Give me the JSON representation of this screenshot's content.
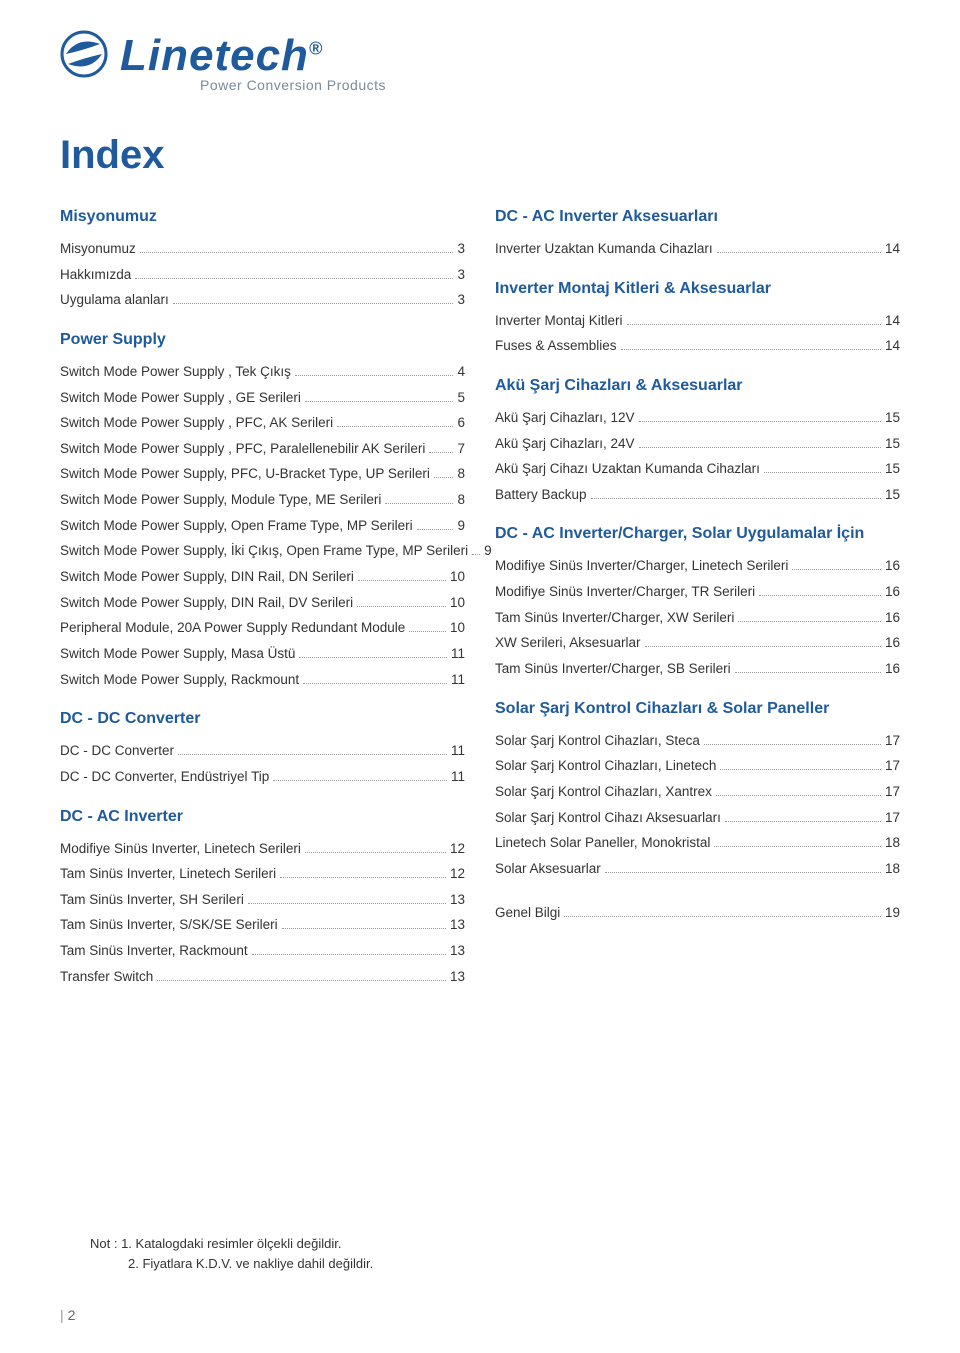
{
  "logo": {
    "name": "Linetech",
    "tm": "®",
    "tagline": "Power Conversion Products"
  },
  "index_title": "Index",
  "left_sections": [
    {
      "title": "Misyonumuz",
      "items": [
        {
          "label": "Misyonumuz",
          "page": "3"
        },
        {
          "label": "Hakkımızda",
          "page": "3"
        },
        {
          "label": "Uygulama alanları",
          "page": "3"
        }
      ]
    },
    {
      "title": "Power Supply",
      "items": [
        {
          "label": "Switch Mode Power Supply , Tek Çıkış",
          "page": "4"
        },
        {
          "label": "Switch Mode Power Supply , GE Serileri",
          "page": "5"
        },
        {
          "label": "Switch Mode Power Supply , PFC, AK Serileri",
          "page": "6"
        },
        {
          "label": "Switch Mode Power Supply , PFC, Paralellenebilir AK Serileri",
          "page": "7"
        },
        {
          "label": "Switch Mode Power Supply, PFC, U-Bracket Type, UP Serileri",
          "page": "8"
        },
        {
          "label": "Switch Mode Power Supply, Module Type, ME Serileri",
          "page": "8"
        },
        {
          "label": "Switch Mode Power Supply, Open Frame Type, MP Serileri",
          "page": "9"
        },
        {
          "label": "Switch Mode Power Supply, İki Çıkış, Open Frame Type, MP Serileri",
          "page": "9"
        },
        {
          "label": "Switch Mode Power Supply, DIN Rail, DN Serileri",
          "page": "10"
        },
        {
          "label": "Switch Mode Power Supply, DIN Rail, DV Serileri",
          "page": "10"
        },
        {
          "label": "Peripheral Module, 20A Power Supply Redundant Module",
          "page": "10"
        },
        {
          "label": "Switch Mode Power Supply, Masa Üstü",
          "page": "11"
        },
        {
          "label": "Switch Mode Power Supply, Rackmount",
          "page": "11"
        }
      ]
    },
    {
      "title": "DC - DC Converter",
      "items": [
        {
          "label": "DC - DC Converter",
          "page": "11"
        },
        {
          "label": "DC - DC Converter, Endüstriyel Tip",
          "page": "11"
        }
      ]
    },
    {
      "title": "DC - AC Inverter",
      "items": [
        {
          "label": "Modifiye Sinüs Inverter, Linetech Serileri",
          "page": "12"
        },
        {
          "label": "Tam Sinüs Inverter, Linetech Serileri",
          "page": "12"
        },
        {
          "label": "Tam Sinüs Inverter, SH Serileri",
          "page": "13"
        },
        {
          "label": "Tam Sinüs Inverter, S/SK/SE Serileri",
          "page": "13"
        },
        {
          "label": "Tam Sinüs Inverter, Rackmount",
          "page": "13"
        },
        {
          "label": "Transfer Switch",
          "page": "13"
        }
      ]
    }
  ],
  "right_sections": [
    {
      "title": "DC - AC Inverter Aksesuarları",
      "items": [
        {
          "label": "Inverter Uzaktan Kumanda Cihazları",
          "page": "14"
        }
      ]
    },
    {
      "title": "Inverter Montaj Kitleri & Aksesuarlar",
      "items": [
        {
          "label": "Inverter Montaj Kitleri",
          "page": "14"
        },
        {
          "label": "Fuses & Assemblies",
          "page": "14"
        }
      ]
    },
    {
      "title": "Akü Şarj Cihazları & Aksesuarlar",
      "items": [
        {
          "label": "Akü Şarj Cihazları, 12V",
          "page": "15"
        },
        {
          "label": "Akü Şarj Cihazları, 24V",
          "page": "15"
        },
        {
          "label": "Akü Şarj Cihazı Uzaktan Kumanda Cihazları",
          "page": "15"
        },
        {
          "label": "Battery Backup",
          "page": "15"
        }
      ]
    },
    {
      "title": "DC - AC Inverter/Charger, Solar Uygulamalar İçin",
      "items": [
        {
          "label": "Modifiye Sinüs Inverter/Charger, Linetech Serileri",
          "page": "16"
        },
        {
          "label": "Modifiye Sinüs Inverter/Charger, TR Serileri",
          "page": "16"
        },
        {
          "label": "Tam Sinüs Inverter/Charger, XW Serileri",
          "page": "16"
        },
        {
          "label": "XW Serileri, Aksesuarlar",
          "page": "16"
        },
        {
          "label": "Tam Sinüs Inverter/Charger, SB Serileri",
          "page": "16"
        }
      ]
    },
    {
      "title": "Solar Şarj Kontrol Cihazları & Solar Paneller",
      "items": [
        {
          "label": "Solar Şarj Kontrol Cihazları, Steca",
          "page": "17"
        },
        {
          "label": "Solar Şarj Kontrol Cihazları, Linetech",
          "page": "17"
        },
        {
          "label": "Solar Şarj Kontrol Cihazları, Xantrex",
          "page": "17"
        },
        {
          "label": "Solar Şarj Kontrol Cihazı Aksesuarları",
          "page": "17"
        },
        {
          "label": "Linetech Solar Paneller, Monokristal",
          "page": "18"
        },
        {
          "label": "Solar Aksesuarlar",
          "page": "18"
        }
      ]
    },
    {
      "title": "",
      "items": [
        {
          "label": "Genel Bilgi",
          "page": "19"
        }
      ]
    }
  ],
  "notes": {
    "line1": "Not : 1. Katalogdaki resimler ölçekli değildir.",
    "line2": "2. Fiyatlara K.D.V. ve nakliye dahil değildir."
  },
  "page_number": "2"
}
